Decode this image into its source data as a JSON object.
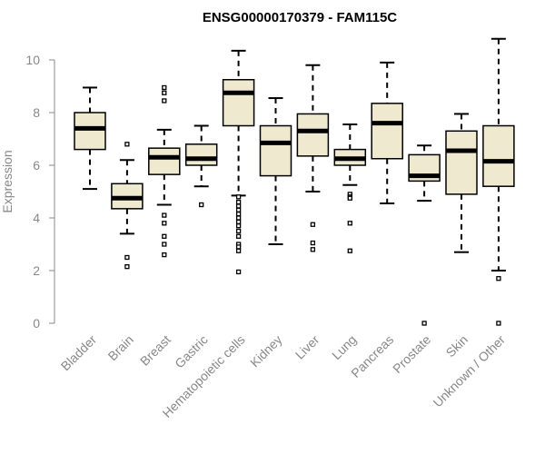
{
  "chart_data": {
    "type": "boxplot",
    "title": "ENSG00000170379 - FAM115C",
    "ylabel": "Expression",
    "xlabel": "",
    "ylim": [
      0,
      10.5
    ],
    "yticks": [
      0,
      2,
      4,
      6,
      8,
      10
    ],
    "box_fill": "#efe9d0",
    "box_stroke": "#000000",
    "categories": [
      "Bladder",
      "Brain",
      "Breast",
      "Gastric",
      "Hematopoietic cells",
      "Kidney",
      "Liver",
      "Lung",
      "Pancreas",
      "Prostate",
      "Skin",
      "Unknown / Other"
    ],
    "boxes": [
      {
        "min": 5.1,
        "q1": 6.6,
        "median": 7.4,
        "q3": 8.0,
        "max": 8.95,
        "outliers": []
      },
      {
        "min": 3.4,
        "q1": 4.35,
        "median": 4.75,
        "q3": 5.3,
        "max": 6.2,
        "outliers": [
          6.8,
          2.5,
          2.15
        ]
      },
      {
        "min": 4.5,
        "q1": 5.65,
        "median": 6.3,
        "q3": 6.65,
        "max": 7.35,
        "outliers": [
          8.95,
          8.75,
          8.45,
          4.1,
          3.8,
          3.3,
          3.0,
          2.6
        ]
      },
      {
        "min": 5.2,
        "q1": 6.0,
        "median": 6.25,
        "q3": 6.8,
        "max": 7.5,
        "outliers": [
          4.5
        ]
      },
      {
        "min": 4.85,
        "q1": 7.5,
        "median": 8.75,
        "q3": 9.25,
        "max": 10.35,
        "outliers": [
          4.8,
          4.6,
          4.45,
          4.3,
          4.15,
          4.0,
          3.85,
          3.7,
          3.5,
          3.3,
          3.0,
          2.9,
          2.75,
          1.95
        ]
      },
      {
        "min": 3.0,
        "q1": 5.6,
        "median": 6.85,
        "q3": 7.5,
        "max": 8.55,
        "outliers": []
      },
      {
        "min": 5.0,
        "q1": 6.35,
        "median": 7.3,
        "q3": 7.95,
        "max": 9.8,
        "outliers": [
          3.75,
          3.05,
          2.8
        ]
      },
      {
        "min": 5.25,
        "q1": 6.0,
        "median": 6.25,
        "q3": 6.6,
        "max": 7.55,
        "outliers": [
          4.9,
          4.8,
          4.75,
          3.8,
          2.75
        ]
      },
      {
        "min": 4.55,
        "q1": 6.25,
        "median": 7.6,
        "q3": 8.35,
        "max": 9.9,
        "outliers": []
      },
      {
        "min": 4.65,
        "q1": 5.4,
        "median": 5.6,
        "q3": 6.4,
        "max": 6.75,
        "outliers": [
          0.0
        ]
      },
      {
        "min": 2.7,
        "q1": 4.9,
        "median": 6.55,
        "q3": 7.3,
        "max": 7.95,
        "outliers": []
      },
      {
        "min": 2.0,
        "q1": 5.2,
        "median": 6.15,
        "q3": 7.5,
        "max": 10.8,
        "outliers": [
          1.7,
          0.0
        ]
      }
    ]
  }
}
